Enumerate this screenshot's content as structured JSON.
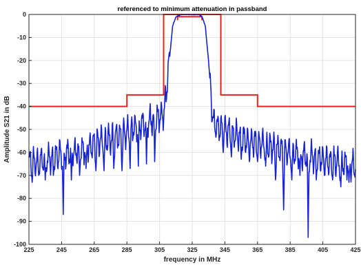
{
  "chart_data": {
    "type": "line",
    "title": "referenced to minimum attenuation in passband",
    "xlabel": "frequency in MHz",
    "ylabel": "Amplitude S21 in dB",
    "xlim": [
      225,
      425
    ],
    "ylim": [
      -100,
      0
    ],
    "xticks": [
      225,
      245,
      265,
      285,
      305,
      325,
      345,
      365,
      385,
      405,
      425
    ],
    "yticks": [
      0,
      -10,
      -20,
      -30,
      -40,
      -50,
      -60,
      -70,
      -80,
      -90,
      -100
    ],
    "grid": true,
    "legend": "none",
    "colors": {
      "mask": "#e8221b",
      "response": "#1522d6",
      "grid": "#e3e3e3",
      "axes": "#262626"
    },
    "series": [
      {
        "kind": "mask",
        "x": [
          225,
          285,
          285,
          307.5,
          307.5,
          342.5,
          342.5,
          365,
          365,
          425
        ],
        "y": [
          -40,
          -40,
          -35,
          -35,
          0,
          0,
          -35,
          -35,
          -40,
          -40
        ]
      },
      {
        "kind": "passband-mask",
        "x": [
          316,
          316,
          331,
          331
        ],
        "y": [
          -2.5,
          -1,
          -1,
          -2.5
        ]
      },
      {
        "kind": "response",
        "envelope_x": [
          225,
          230,
          240,
          250,
          260,
          270,
          280,
          290,
          300,
          306,
          308,
          311,
          313,
          315,
          318,
          322,
          326,
          329,
          331,
          333,
          335,
          337,
          338,
          339,
          342,
          350,
          360,
          370,
          380,
          390,
          400,
          410,
          420,
          425
        ],
        "envelope_y": [
          -64,
          -64,
          -62,
          -60,
          -58,
          -55,
          -53,
          -49,
          -46,
          -44,
          -42,
          -20,
          -5,
          -1,
          0,
          0,
          0,
          0,
          -1,
          -5,
          -20,
          -40,
          -47,
          -48,
          -49,
          -52,
          -55,
          -57,
          -59,
          -61,
          -62,
          -64,
          -65,
          -66
        ],
        "notch_x": [
          227,
          231,
          235,
          240,
          246,
          251,
          256,
          260,
          266,
          271,
          277,
          282,
          287,
          292,
          297,
          302,
          344,
          349,
          355,
          360,
          365,
          370,
          376,
          381,
          386,
          391,
          396,
          401,
          406,
          411,
          416,
          421
        ],
        "notch_y": [
          -73,
          -70,
          -72,
          -70,
          -87,
          -72,
          -70,
          -67,
          -68,
          -68,
          -67,
          -68,
          -67,
          -66,
          -65,
          -64,
          -60,
          -62,
          -63,
          -64,
          -64,
          -66,
          -72,
          -85,
          -72,
          -70,
          -97,
          -72,
          -70,
          -72,
          -75,
          -73
        ]
      }
    ]
  }
}
